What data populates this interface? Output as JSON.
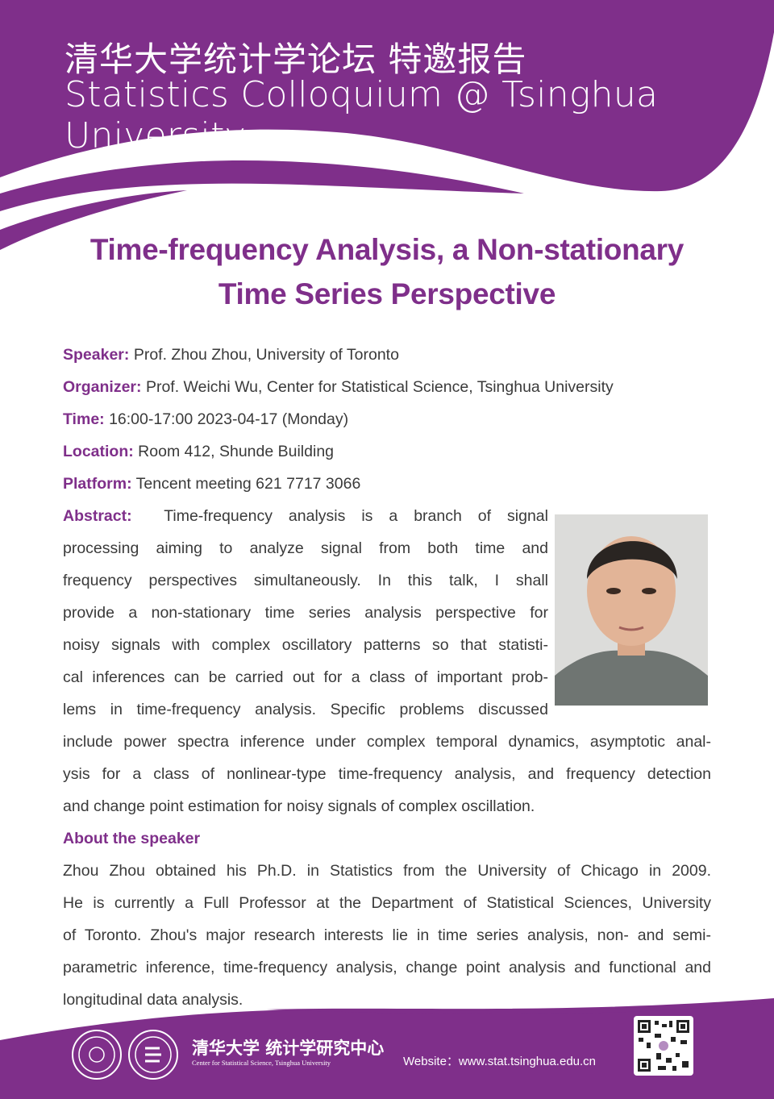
{
  "colors": {
    "brand": "#7f2f8a",
    "text": "#3a3a3a"
  },
  "header": {
    "title_cn": "清华大学统计学论坛  特邀报告",
    "title_en": "Statistics Colloquium @ Tsinghua University"
  },
  "talk": {
    "title_lines": [
      "Time-frequency Analysis, a Non-stationary",
      "Time Series Perspective"
    ]
  },
  "info": [
    {
      "label": "Speaker:",
      "value": "Prof. Zhou Zhou, University of Toronto"
    },
    {
      "label": "Organizer:",
      "value": "Prof. Weichi Wu, Center for Statistical Science, Tsinghua University"
    },
    {
      "label": "Time:",
      "value": "16:00-17:00 2023-04-17 (Monday)"
    },
    {
      "label": "Location:",
      "value": "Room 412, Shunde Building"
    },
    {
      "label": "Platform:",
      "value": "Tencent meeting 621 7717 3066"
    }
  ],
  "abstract": {
    "label": "Abstract:",
    "lines": [
      "Time-frequency analysis is a branch of signal",
      "processing aiming to analyze signal from both time and",
      "frequency perspectives simultaneously. In this talk, I shall",
      "provide a non-stationary time series analysis perspective for",
      "noisy signals with complex oscillatory patterns so that statisti-",
      "cal inferences can be carried out for a class of important prob-",
      "lems in time-frequency analysis. Specific problems discussed",
      "include power spectra inference under complex temporal dynamics, asymptotic anal-",
      "ysis for a class of nonlinear-type time-frequency analysis, and frequency detection",
      "and change point estimation for noisy signals of complex oscillation."
    ]
  },
  "about": {
    "heading": "About the speaker",
    "lines": [
      "Zhou Zhou obtained his Ph.D. in Statistics from the University of Chicago in 2009.",
      "He is currently a Full Professor at the Department of Statistical Sciences, University",
      "of Toronto. Zhou's major research interests lie in time series analysis, non- and semi-",
      "parametric inference, time-frequency analysis, change point analysis and functional and",
      "longitudinal data analysis."
    ]
  },
  "footer": {
    "center_cn": "清华大学 统计学研究中心",
    "center_en": "Center for Statistical Science, Tsinghua University",
    "website": "Website：www.stat.tsinghua.edu.cn",
    "icons": [
      "tsinghua-seal-logo",
      "center-logo",
      "qr-code"
    ]
  }
}
